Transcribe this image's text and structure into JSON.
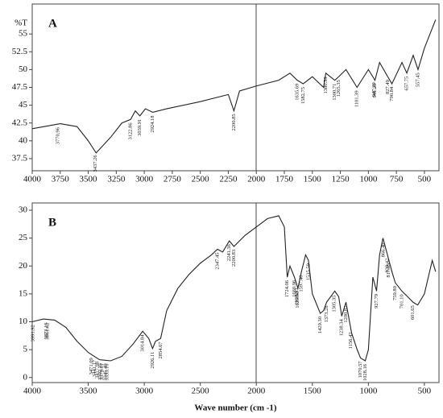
{
  "chart_data": [
    {
      "type": "line",
      "title": "A",
      "ylabel": "%T",
      "color": "#222222",
      "x": [
        4000,
        3750,
        3600,
        3500,
        3430,
        3300,
        3200,
        3122,
        3080,
        3039,
        2990,
        2924,
        2800,
        2500,
        2250,
        2200,
        2150,
        2000,
        1800,
        1700,
        1635,
        1582,
        1500,
        1400,
        1380,
        1300,
        1265,
        1200,
        1101,
        1000,
        941,
        900,
        827,
        790,
        700,
        657,
        600,
        557,
        500,
        400
      ],
      "values": [
        41.7,
        42.4,
        42,
        40,
        38.3,
        40.5,
        42.5,
        43.0,
        44.2,
        43.5,
        44.5,
        44,
        44.5,
        45.5,
        46.5,
        44.2,
        47,
        47.7,
        48.5,
        49.5,
        48.5,
        48,
        49,
        47.5,
        49.5,
        48.5,
        49,
        50,
        47.5,
        50,
        48.5,
        51,
        49,
        48,
        51,
        49.5,
        52,
        50,
        53,
        57
      ],
      "annotations": [
        {
          "value": 3770.96,
          "label": "3770.96"
        },
        {
          "value": 3437.26,
          "label": "3437.26"
        },
        {
          "value": 3122.86,
          "label": "3122.86"
        },
        {
          "value": 3039.91,
          "label": "3039.91"
        },
        {
          "value": 2924.18,
          "label": "2924.18"
        },
        {
          "value": 2200.85,
          "label": "2200.85"
        },
        {
          "value": 1635.69,
          "label": "1635.69"
        },
        {
          "value": 1582.75,
          "label": "1582.75"
        },
        {
          "value": 1380.59,
          "label": "1380.59"
        },
        {
          "value": 1300.71,
          "label": "1300.71"
        },
        {
          "value": 1265.35,
          "label": "1265.35"
        },
        {
          "value": 1101.39,
          "label": "1101.39"
        },
        {
          "value": 947.29,
          "label": "947.29"
        },
        {
          "value": 941.29,
          "label": "941.29"
        },
        {
          "value": 827.49,
          "label": "827.49"
        },
        {
          "value": 790.84,
          "label": "790.84"
        },
        {
          "value": 657.75,
          "label": "657.75"
        },
        {
          "value": 557.45,
          "label": "557.45"
        }
      ],
      "xlim": [
        4000,
        370
      ],
      "ylim": [
        35.8,
        59.2
      ],
      "xticks": [
        4000,
        3750,
        3500,
        3250,
        3000,
        2750,
        2500,
        2250,
        2000,
        1750,
        1500,
        1250,
        1000,
        750,
        500
      ],
      "yticks": [
        37.5,
        40,
        42.5,
        45,
        47.5,
        50,
        52.5,
        55
      ]
    },
    {
      "type": "line",
      "title": "B",
      "xlabel": "Wave number (cm -1)",
      "color": "#222222",
      "x": [
        4000,
        3900,
        3800,
        3700,
        3600,
        3500,
        3400,
        3300,
        3200,
        3100,
        3014,
        2960,
        2926,
        2900,
        2854,
        2800,
        2700,
        2600,
        2500,
        2400,
        2347,
        2300,
        2241,
        2200,
        2100,
        2000,
        1900,
        1800,
        1750,
        1724,
        1700,
        1660,
        1629,
        1597,
        1560,
        1535,
        1500,
        1429,
        1400,
        1373,
        1300,
        1265,
        1238,
        1200,
        1150,
        1100,
        1070,
        1028,
        1000,
        960,
        927,
        900,
        870,
        830,
        790,
        760,
        701,
        650,
        601,
        560,
        500,
        430,
        400
      ],
      "values": [
        10,
        10.5,
        10.3,
        9,
        6.5,
        4.5,
        3.2,
        3,
        3.8,
        6,
        8.3,
        7,
        5.2,
        6.5,
        7,
        12,
        16,
        18.5,
        20.5,
        22,
        23,
        22.5,
        24.5,
        23.5,
        25.5,
        27,
        28.5,
        29,
        27,
        18,
        20,
        18,
        16,
        19,
        22,
        21,
        15,
        11.5,
        12,
        13.5,
        15.5,
        14.5,
        11,
        13.5,
        8,
        5,
        3.5,
        3,
        5,
        18,
        15.5,
        22,
        25,
        22,
        19,
        17,
        15.5,
        14.5,
        13.5,
        13,
        15,
        21,
        19
      ],
      "annotations": [
        {
          "value": 3991.92,
          "label": "3991.92"
        },
        {
          "value": 3873.16,
          "label": "3873.16"
        },
        {
          "value": 3861.62,
          "label": "3861.62"
        },
        {
          "value": 3471.09,
          "label": "3471.09"
        },
        {
          "value": 3441.17,
          "label": "3441.17"
        },
        {
          "value": 3417.98,
          "label": "3417.98"
        },
        {
          "value": 3392.35,
          "label": "3392.35"
        },
        {
          "value": 3379.81,
          "label": "3379.81"
        },
        {
          "value": 3345.4,
          "label": "3345.40"
        },
        {
          "value": 3333.1,
          "label": "3333.10"
        },
        {
          "value": 3014.84,
          "label": "3014.84"
        },
        {
          "value": 2926.11,
          "label": "2926.11"
        },
        {
          "value": 2854.67,
          "label": "2854.67"
        },
        {
          "value": 2347.45,
          "label": "2347.45"
        },
        {
          "value": 2241.36,
          "label": "2241.36"
        },
        {
          "value": 2200.83,
          "label": "2200.83"
        },
        {
          "value": 1724.06,
          "label": "1724.06"
        },
        {
          "value": 1660.96,
          "label": "1660.96"
        },
        {
          "value": 1638.93,
          "label": "1638.93"
        },
        {
          "value": 1629.9,
          "label": "1629.90"
        },
        {
          "value": 1597.4,
          "label": "1597.40"
        },
        {
          "value": 1535.59,
          "label": "1535.59"
        },
        {
          "value": 1429.3,
          "label": "1429.30"
        },
        {
          "value": 1373.28,
          "label": "1373.28"
        },
        {
          "value": 1305.35,
          "label": "1305.35"
        },
        {
          "value": 1238.34,
          "label": "1238.34"
        },
        {
          "value": 1200.82,
          "label": "1200.82"
        },
        {
          "value": 1156.42,
          "label": "1156.42"
        },
        {
          "value": 1070.57,
          "label": "1070.57"
        },
        {
          "value": 1028.16,
          "label": "1028.16"
        },
        {
          "value": 927.79,
          "label": "927.79"
        },
        {
          "value": 866.4,
          "label": "866.40"
        },
        {
          "value": 829.42,
          "label": "829.42"
        },
        {
          "value": 817.85,
          "label": "817.85"
        },
        {
          "value": 759.8,
          "label": "759.80"
        },
        {
          "value": 701.1,
          "label": "701.10"
        },
        {
          "value": 601.65,
          "label": "601.65"
        }
      ],
      "xlim": [
        4000,
        370
      ],
      "ylim": [
        -0.9,
        31.3
      ],
      "xticks": [
        4000,
        3500,
        3000,
        2500,
        2000,
        1500,
        1000,
        500
      ],
      "yticks": [
        0,
        5,
        10,
        15,
        20,
        25,
        30
      ]
    }
  ]
}
